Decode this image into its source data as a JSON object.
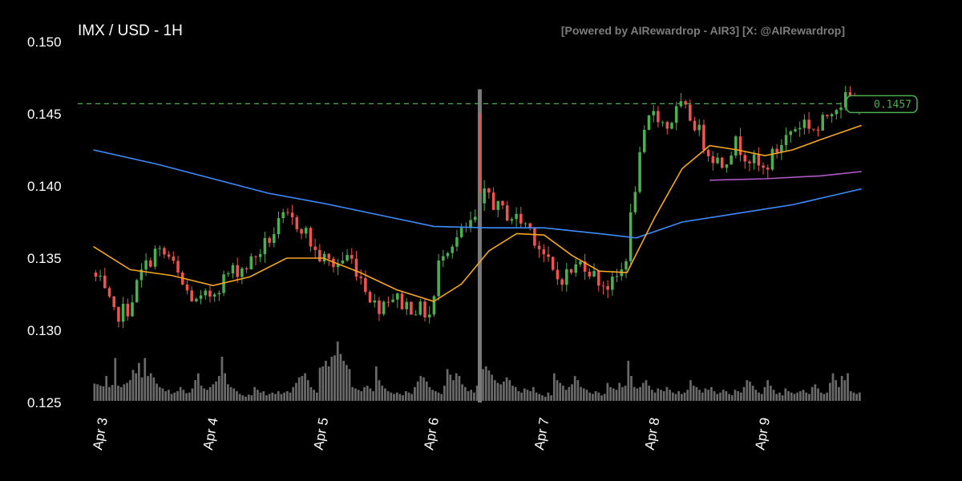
{
  "chart_data": {
    "type": "candlestick",
    "title": "IMX / USD - 1H",
    "credit": "[Powered by AIRewardrop - AIR3] [X: @AIRewardrop]",
    "last_price_label": "0.1457",
    "last_price": 0.1457,
    "ylim": [
      0.125,
      0.15
    ],
    "y_ticks": [
      "0.150",
      "0.145",
      "0.140",
      "0.135",
      "0.130",
      "0.125"
    ],
    "x_ticks": [
      "Apr 3",
      "Apr 4",
      "Apr 5",
      "Apr 6",
      "Apr 7",
      "Apr 8",
      "Apr 9"
    ],
    "colors": {
      "up": "#4caf50",
      "down": "#ef5350",
      "volume": "#6a6a6a",
      "ma_fast": "#f5a623",
      "ma_slow": "#3d8bfd",
      "ma_mid": "#b05ac8",
      "last_line": "#4caf50"
    },
    "price_path": [
      [
        "Apr 2 22:00",
        0.134
      ],
      [
        "Apr 3 00:00",
        0.1332
      ],
      [
        "Apr 3 03:00",
        0.131
      ],
      [
        "Apr 3 06:00",
        0.1315
      ],
      [
        "Apr 3 09:00",
        0.134
      ],
      [
        "Apr 3 12:00",
        0.1355
      ],
      [
        "Apr 3 15:00",
        0.135
      ],
      [
        "Apr 3 18:00",
        0.133
      ],
      [
        "Apr 3 21:00",
        0.1318
      ],
      [
        "Apr 4 00:00",
        0.1325
      ],
      [
        "Apr 4 04:00",
        0.134
      ],
      [
        "Apr 4 08:00",
        0.1345
      ],
      [
        "Apr 4 12:00",
        0.136
      ],
      [
        "Apr 4 16:00",
        0.1378
      ],
      [
        "Apr 4 20:00",
        0.1372
      ],
      [
        "Apr 4 23:00",
        0.1352
      ],
      [
        "Apr 5 03:00",
        0.1345
      ],
      [
        "Apr 5 06:00",
        0.1352
      ],
      [
        "Apr 5 09:00",
        0.1335
      ],
      [
        "Apr 5 12:00",
        0.1315
      ],
      [
        "Apr 5 15:00",
        0.1325
      ],
      [
        "Apr 5 18:00",
        0.1318
      ],
      [
        "Apr 5 21:00",
        0.1315
      ],
      [
        "Apr 6 00:00",
        0.131
      ],
      [
        "Apr 6 02:00",
        0.1355
      ],
      [
        "Apr 6 06:00",
        0.1365
      ],
      [
        "Apr 6 10:00",
        0.1378
      ],
      [
        "Apr 6 12:00",
        0.1398
      ],
      [
        "Apr 6 14:00",
        0.1385
      ],
      [
        "Apr 6 18:00",
        0.1378
      ],
      [
        "Apr 6 21:00",
        0.1373
      ],
      [
        "Apr 7 00:00",
        0.1355
      ],
      [
        "Apr 7 03:00",
        0.1335
      ],
      [
        "Apr 7 06:00",
        0.134
      ],
      [
        "Apr 7 09:00",
        0.1348
      ],
      [
        "Apr 7 12:00",
        0.1335
      ],
      [
        "Apr 7 15:00",
        0.133
      ],
      [
        "Apr 7 18:00",
        0.1345
      ],
      [
        "Apr 7 20:00",
        0.1395
      ],
      [
        "Apr 7 22:00",
        0.143
      ],
      [
        "Apr 8 00:00",
        0.1455
      ],
      [
        "Apr 8 03:00",
        0.144
      ],
      [
        "Apr 8 06:00",
        0.1455
      ],
      [
        "Apr 8 09:00",
        0.1445
      ],
      [
        "Apr 8 12:00",
        0.1425
      ],
      [
        "Apr 8 15:00",
        0.1415
      ],
      [
        "Apr 8 18:00",
        0.143
      ],
      [
        "Apr 8 21:00",
        0.142
      ],
      [
        "Apr 9 00:00",
        0.141
      ],
      [
        "Apr 9 03:00",
        0.1425
      ],
      [
        "Apr 9 06:00",
        0.1438
      ],
      [
        "Apr 9 09:00",
        0.1445
      ],
      [
        "Apr 9 12:00",
        0.1438
      ],
      [
        "Apr 9 15:00",
        0.1455
      ],
      [
        "Apr 9 18:00",
        0.146
      ],
      [
        "Apr 9 21:00",
        0.1457
      ]
    ],
    "spike": {
      "time": "Apr 6 10:00",
      "high": 0.1467,
      "low": 0.125
    },
    "ma_fast": [
      [
        "Apr 2 22:00",
        0.1358
      ],
      [
        "Apr 3 06:00",
        0.1342
      ],
      [
        "Apr 3 15:00",
        0.1338
      ],
      [
        "Apr 4 00:00",
        0.1331
      ],
      [
        "Apr 4 08:00",
        0.1337
      ],
      [
        "Apr 4 16:00",
        0.135
      ],
      [
        "Apr 5 00:00",
        0.135
      ],
      [
        "Apr 5 08:00",
        0.134
      ],
      [
        "Apr 5 16:00",
        0.1328
      ],
      [
        "Apr 6 00:00",
        0.132
      ],
      [
        "Apr 6 06:00",
        0.1332
      ],
      [
        "Apr 6 12:00",
        0.1355
      ],
      [
        "Apr 6 18:00",
        0.1367
      ],
      [
        "Apr 7 00:00",
        0.1366
      ],
      [
        "Apr 7 06:00",
        0.1352
      ],
      [
        "Apr 7 12:00",
        0.1341
      ],
      [
        "Apr 7 18:00",
        0.134
      ],
      [
        "Apr 8 00:00",
        0.1378
      ],
      [
        "Apr 8 06:00",
        0.1412
      ],
      [
        "Apr 8 12:00",
        0.1428
      ],
      [
        "Apr 8 18:00",
        0.1425
      ],
      [
        "Apr 9 00:00",
        0.1421
      ],
      [
        "Apr 9 06:00",
        0.1425
      ],
      [
        "Apr 9 12:00",
        0.1432
      ],
      [
        "Apr 9 21:00",
        0.1442
      ]
    ],
    "ma_slow": [
      [
        "Apr 2 22:00",
        0.1425
      ],
      [
        "Apr 3 12:00",
        0.1415
      ],
      [
        "Apr 4 00:00",
        0.1405
      ],
      [
        "Apr 4 12:00",
        0.1395
      ],
      [
        "Apr 5 00:00",
        0.1388
      ],
      [
        "Apr 5 12:00",
        0.138
      ],
      [
        "Apr 6 00:00",
        0.1372
      ],
      [
        "Apr 6 12:00",
        0.1371
      ],
      [
        "Apr 7 00:00",
        0.1371
      ],
      [
        "Apr 7 12:00",
        0.1367
      ],
      [
        "Apr 7 20:00",
        0.1364
      ],
      [
        "Apr 8 06:00",
        0.1375
      ],
      [
        "Apr 8 18:00",
        0.1381
      ],
      [
        "Apr 9 06:00",
        0.1387
      ],
      [
        "Apr 9 21:00",
        0.1398
      ]
    ],
    "ma_mid": [
      [
        "Apr 8 12:00",
        0.1404
      ],
      [
        "Apr 9 00:00",
        0.1405
      ],
      [
        "Apr 9 12:00",
        0.1407
      ],
      [
        "Apr 9 21:00",
        0.141
      ]
    ],
    "volume_scale_max": 1.0,
    "volume": [
      0.25,
      0.24,
      0.22,
      0.21,
      0.36,
      0.2,
      0.23,
      0.62,
      0.22,
      0.2,
      0.24,
      0.26,
      0.3,
      0.45,
      0.4,
      0.55,
      0.34,
      0.62,
      0.36,
      0.4,
      0.34,
      0.25,
      0.2,
      0.18,
      0.14,
      0.16,
      0.1,
      0.12,
      0.14,
      0.2,
      0.16,
      0.11,
      0.12,
      0.18,
      0.3,
      0.4,
      0.22,
      0.18,
      0.16,
      0.2,
      0.24,
      0.28,
      0.36,
      0.64,
      0.4,
      0.24,
      0.2,
      0.18,
      0.14,
      0.1,
      0.08,
      0.06,
      0.09,
      0.08,
      0.2,
      0.16,
      0.12,
      0.14,
      0.08,
      0.1,
      0.12,
      0.1,
      0.14,
      0.1,
      0.12,
      0.14,
      0.12,
      0.2,
      0.26,
      0.34,
      0.36,
      0.4,
      0.3,
      0.2,
      0.16,
      0.12,
      0.48,
      0.5,
      0.58,
      0.5,
      0.64,
      0.66,
      0.86,
      0.68,
      0.58,
      0.52,
      0.46,
      0.2,
      0.18,
      0.16,
      0.14,
      0.2,
      0.22,
      0.18,
      0.14,
      0.5,
      0.3,
      0.22,
      0.18,
      0.14,
      0.12,
      0.1,
      0.12,
      0.1,
      0.08,
      0.14,
      0.12,
      0.1,
      0.2,
      0.28,
      0.36,
      0.34,
      0.28,
      0.2,
      0.16,
      0.14,
      0.12,
      0.1,
      0.22,
      0.46,
      0.38,
      0.3,
      0.4,
      0.36,
      0.24,
      0.2,
      0.14,
      0.16,
      0.12,
      0.22,
      0.36,
      0.46,
      0.5,
      0.44,
      0.38,
      0.3,
      0.26,
      0.24,
      0.28,
      0.34,
      0.3,
      0.22,
      0.2,
      0.14,
      0.12,
      0.18,
      0.16,
      0.14,
      0.2,
      0.12,
      0.1,
      0.08,
      0.06,
      0.12,
      0.08,
      0.4,
      0.3,
      0.26,
      0.22,
      0.16,
      0.2,
      0.24,
      0.36,
      0.3,
      0.2,
      0.18,
      0.16,
      0.12,
      0.1,
      0.14,
      0.12,
      0.08,
      0.1,
      0.26,
      0.2,
      0.18,
      0.16,
      0.26,
      0.2,
      0.22,
      0.58,
      0.36,
      0.2,
      0.18,
      0.2,
      0.26,
      0.3,
      0.22,
      0.16,
      0.12,
      0.18,
      0.16,
      0.14,
      0.2,
      0.16,
      0.12,
      0.1,
      0.14,
      0.1,
      0.12,
      0.16,
      0.3,
      0.22,
      0.2,
      0.16,
      0.12,
      0.18,
      0.16,
      0.2,
      0.14,
      0.1,
      0.12,
      0.16,
      0.14,
      0.1,
      0.08,
      0.16,
      0.14,
      0.12,
      0.2,
      0.3,
      0.28,
      0.22,
      0.16,
      0.12,
      0.1,
      0.2,
      0.3,
      0.22,
      0.16,
      0.1,
      0.12,
      0.08,
      0.18,
      0.14,
      0.12,
      0.1,
      0.12,
      0.14,
      0.16,
      0.12,
      0.1,
      0.2,
      0.24,
      0.18,
      0.12,
      0.1,
      0.12,
      0.26,
      0.4,
      0.3,
      0.2,
      0.36,
      0.3,
      0.4,
      0.14,
      0.12,
      0.1,
      0.12
    ]
  }
}
